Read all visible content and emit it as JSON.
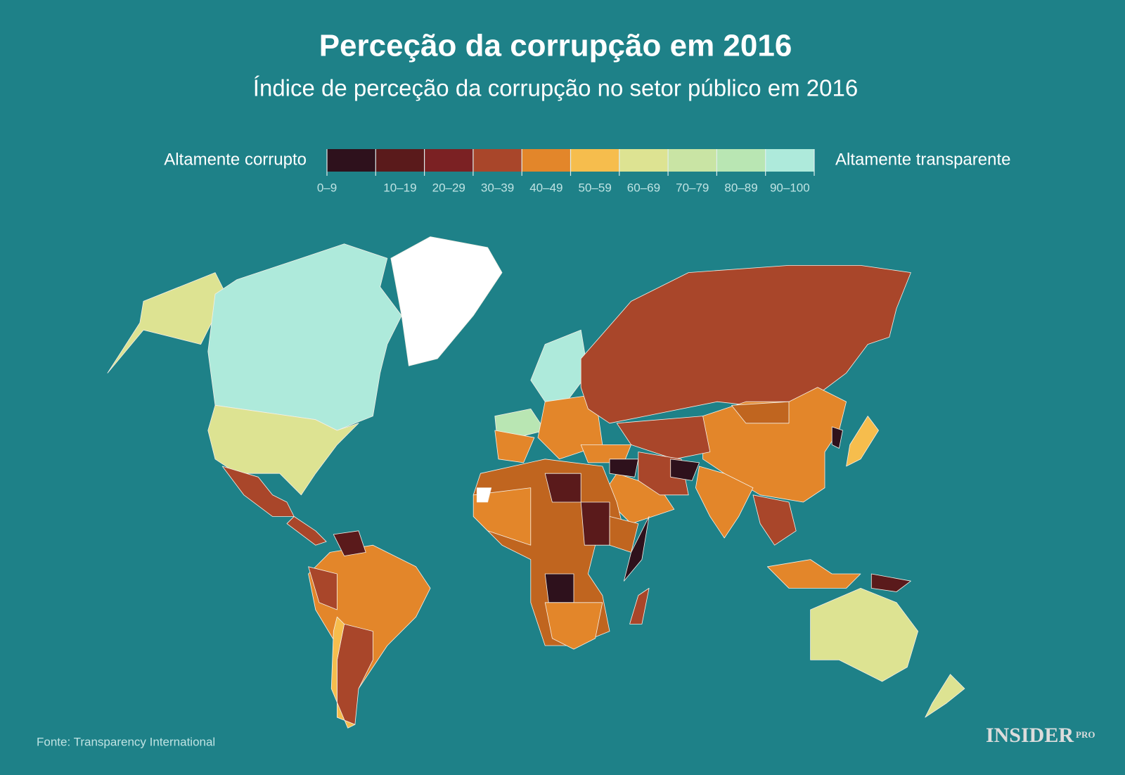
{
  "title": "Perceção da corrupção em 2016",
  "subtitle": "Índice de perceção da corrupção no setor público em 2016",
  "legend": {
    "low_label": "Altamente corrupto",
    "high_label": "Altamente transparente",
    "bins": [
      {
        "label": "0–9",
        "color": "#2e111c"
      },
      {
        "label": "10–19",
        "color": "#5a1a1b"
      },
      {
        "label": "20–29",
        "color": "#7b2123"
      },
      {
        "label": "30–39",
        "color": "#a9462a"
      },
      {
        "label": "40–49",
        "color": "#e3862a"
      },
      {
        "label": "50–59",
        "color": "#f6bd4d"
      },
      {
        "label": "60–69",
        "color": "#dde392"
      },
      {
        "label": "70–79",
        "color": "#c9e4a4"
      },
      {
        "label": "80–89",
        "color": "#b9e6b3"
      },
      {
        "label": "90–100",
        "color": "#aeeadb"
      }
    ]
  },
  "source": "Fonte: Transparency International",
  "brand": {
    "name": "INSIDER",
    "suffix": "PRO"
  }
}
